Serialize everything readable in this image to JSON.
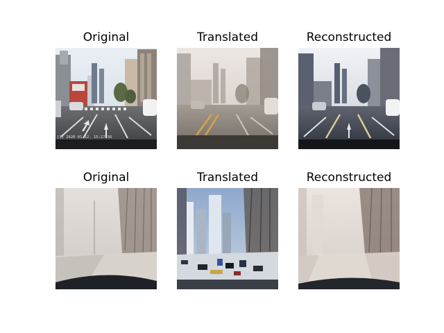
{
  "grid": {
    "rows": [
      {
        "cells": [
          {
            "title": "Original",
            "image": "dashcam-city-road-clear"
          },
          {
            "title": "Translated",
            "image": "dashcam-city-road-foggy"
          },
          {
            "title": "Reconstructed",
            "image": "dashcam-city-road-reconstructed"
          }
        ]
      },
      {
        "cells": [
          {
            "title": "Original",
            "image": "dashcam-foggy-snowy-road"
          },
          {
            "title": "Translated",
            "image": "dashcam-snow-road-translated-clear"
          },
          {
            "title": "Reconstructed",
            "image": "dashcam-foggy-road-reconstructed"
          }
        ]
      }
    ]
  },
  "overlay": {
    "timestamp": "[1] 2020 01 12. 15:27:56"
  }
}
